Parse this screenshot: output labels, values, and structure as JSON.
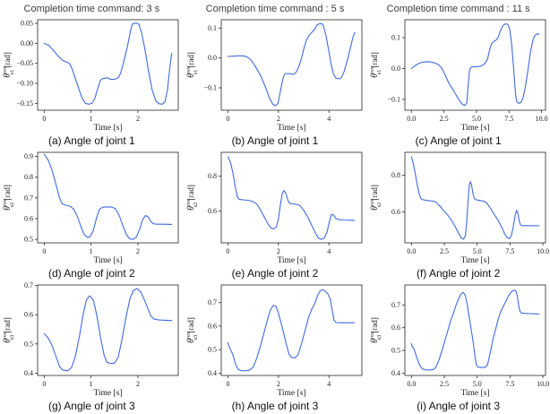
{
  "style": {
    "line_color": "#4169e1",
    "axis_color": "#262626",
    "title_color": "#3c3c3c",
    "caption_color": "#101010"
  },
  "chart_data": [
    {
      "id": "a",
      "type": "line",
      "title": "Completion time command: 3 s",
      "caption": "(a) Angle of joint 1",
      "xlabel": "Time [s]",
      "ylabel": {
        "sym": "θ",
        "sup": "res",
        "sub": "s1",
        "unit": "[rad]"
      },
      "xlim": [
        -0.14,
        2.86
      ],
      "ylim": [
        -0.167,
        0.059
      ],
      "xticks": [
        0,
        1,
        2
      ],
      "xtick_labels": [
        "0",
        "1",
        "2"
      ],
      "yticks": [
        0.05,
        0.0,
        -0.05,
        -0.1,
        -0.15
      ],
      "ytick_labels": [
        "0.05",
        "0.00",
        "−0.05",
        "−0.10",
        "−0.15"
      ],
      "t": [
        0,
        0.1,
        0.2,
        0.3,
        0.4,
        0.5,
        0.55,
        0.6,
        0.7,
        0.8,
        0.88,
        0.95,
        1.02,
        1.08,
        1.15,
        1.2,
        1.25,
        1.35,
        1.42,
        1.5,
        1.58,
        1.63,
        1.7,
        1.78,
        1.84,
        1.88,
        1.95,
        2.02,
        2.08,
        2.15,
        2.22,
        2.3,
        2.38,
        2.45,
        2.52,
        2.58,
        2.63,
        2.68,
        2.72
      ],
      "v": [
        0,
        -0.005,
        -0.018,
        -0.032,
        -0.043,
        -0.048,
        -0.052,
        -0.065,
        -0.1,
        -0.135,
        -0.15,
        -0.152,
        -0.15,
        -0.138,
        -0.11,
        -0.092,
        -0.088,
        -0.086,
        -0.09,
        -0.09,
        -0.086,
        -0.075,
        -0.045,
        -0.005,
        0.03,
        0.048,
        0.051,
        0.048,
        0.025,
        -0.015,
        -0.065,
        -0.115,
        -0.143,
        -0.151,
        -0.152,
        -0.145,
        -0.115,
        -0.06,
        -0.025
      ]
    },
    {
      "id": "b",
      "type": "line",
      "title": "Completion time command : 5 s",
      "caption": "(b) Angle of joint 1",
      "xlabel": "Time [s]",
      "ylabel": {
        "sym": "θ",
        "sup": "res",
        "sub": "s1",
        "unit": "[rad]"
      },
      "xlim": [
        -0.26,
        5.3
      ],
      "ylim": [
        -0.175,
        0.128
      ],
      "xticks": [
        0,
        2,
        4
      ],
      "xtick_labels": [
        "0",
        "2",
        "4"
      ],
      "yticks": [
        0.1,
        0.0,
        -0.1
      ],
      "ytick_labels": [
        "0.1",
        "0.0",
        "−0.1"
      ],
      "t": [
        0,
        0.2,
        0.4,
        0.6,
        0.75,
        0.9,
        1.1,
        1.3,
        1.5,
        1.65,
        1.78,
        1.88,
        1.98,
        2.05,
        2.15,
        2.22,
        2.3,
        2.45,
        2.6,
        2.7,
        2.8,
        2.9,
        3.0,
        3.1,
        3.2,
        3.35,
        3.45,
        3.52,
        3.6,
        3.7,
        3.78,
        3.88,
        3.98,
        4.08,
        4.18,
        4.28,
        4.4,
        4.5,
        4.6,
        4.72,
        4.85,
        4.95,
        5.02
      ],
      "v": [
        0.005,
        0.006,
        0.007,
        0.007,
        0.004,
        -0.005,
        -0.03,
        -0.06,
        -0.1,
        -0.135,
        -0.155,
        -0.16,
        -0.152,
        -0.125,
        -0.08,
        -0.058,
        -0.052,
        -0.053,
        -0.055,
        -0.048,
        -0.03,
        -0.005,
        0.03,
        0.058,
        0.075,
        0.088,
        0.098,
        0.11,
        0.114,
        0.115,
        0.108,
        0.075,
        0.03,
        -0.02,
        -0.055,
        -0.068,
        -0.07,
        -0.065,
        -0.045,
        -0.01,
        0.035,
        0.07,
        0.085
      ]
    },
    {
      "id": "c",
      "type": "line",
      "title": "Completion time command : 11 s",
      "caption": "(c) Angle of joint 1",
      "xlabel": "Time [s]",
      "ylabel": {
        "sym": "θ",
        "sup": "res",
        "sub": "s1",
        "unit": "[rad]"
      },
      "xlim": [
        -0.5,
        10.3
      ],
      "ylim": [
        -0.135,
        0.158
      ],
      "xticks": [
        0,
        2.5,
        5,
        7.5,
        10
      ],
      "xtick_labels": [
        "0.0",
        "2.5",
        "5.0",
        "7.5",
        "10.0"
      ],
      "yticks": [
        0.1,
        0.0,
        -0.1
      ],
      "ytick_labels": [
        "0.1",
        "0.0",
        "−0.1"
      ],
      "t": [
        0,
        0.3,
        0.6,
        0.9,
        1.2,
        1.5,
        1.8,
        2.1,
        2.35,
        2.6,
        2.85,
        3.1,
        3.35,
        3.6,
        3.8,
        3.95,
        4.1,
        4.25,
        4.35,
        4.45,
        4.55,
        4.7,
        5.0,
        5.3,
        5.55,
        5.7,
        5.85,
        6.0,
        6.15,
        6.3,
        6.5,
        6.65,
        6.8,
        6.95,
        7.1,
        7.25,
        7.4,
        7.55,
        7.7,
        7.85,
        8.0,
        8.1,
        8.25,
        8.4,
        8.55,
        8.75,
        8.95,
        9.15,
        9.35,
        9.5,
        9.65,
        9.8
      ],
      "v": [
        0,
        0.01,
        0.017,
        0.021,
        0.022,
        0.021,
        0.018,
        0.012,
        0,
        -0.022,
        -0.045,
        -0.062,
        -0.08,
        -0.098,
        -0.11,
        -0.117,
        -0.12,
        -0.112,
        -0.06,
        -0.01,
        0.003,
        0.006,
        0.006,
        0.007,
        0.012,
        0.02,
        0.03,
        0.06,
        0.08,
        0.087,
        0.092,
        0.1,
        0.118,
        0.133,
        0.142,
        0.145,
        0.143,
        0.128,
        0.08,
        0,
        -0.085,
        -0.108,
        -0.113,
        -0.11,
        -0.098,
        -0.06,
        -0.005,
        0.055,
        0.095,
        0.108,
        0.112,
        0.111
      ]
    },
    {
      "id": "d",
      "type": "line",
      "caption": "(d) Angle of joint 2",
      "xlabel": "Time [s]",
      "ylabel": {
        "sym": "θ",
        "sup": "res",
        "sub": "s2",
        "unit": "[rad]"
      },
      "xlim": [
        -0.14,
        2.86
      ],
      "ylim": [
        0.483,
        0.92
      ],
      "xticks": [
        0,
        1,
        2
      ],
      "xtick_labels": [
        "0",
        "1",
        "2"
      ],
      "yticks": [
        0.9,
        0.8,
        0.7,
        0.6,
        0.5
      ],
      "ytick_labels": [
        "0.9",
        "0.8",
        "0.7",
        "0.6",
        "0.5"
      ],
      "t": [
        0,
        0.08,
        0.16,
        0.24,
        0.32,
        0.38,
        0.45,
        0.55,
        0.62,
        0.7,
        0.78,
        0.85,
        0.92,
        0.98,
        1.05,
        1.12,
        1.18,
        1.25,
        1.35,
        1.45,
        1.52,
        1.6,
        1.68,
        1.76,
        1.83,
        1.9,
        1.97,
        2.04,
        2.1,
        2.16,
        2.22,
        2.28,
        2.33,
        2.4,
        2.55,
        2.72
      ],
      "v": [
        0.91,
        0.885,
        0.84,
        0.775,
        0.705,
        0.672,
        0.665,
        0.66,
        0.648,
        0.615,
        0.565,
        0.525,
        0.51,
        0.512,
        0.545,
        0.605,
        0.645,
        0.655,
        0.657,
        0.655,
        0.648,
        0.615,
        0.565,
        0.52,
        0.502,
        0.5,
        0.512,
        0.55,
        0.595,
        0.615,
        0.608,
        0.585,
        0.575,
        0.573,
        0.573,
        0.572
      ]
    },
    {
      "id": "e",
      "type": "line",
      "caption": "(e) Angle of joint 2",
      "xlabel": "Time [s]",
      "ylabel": {
        "sym": "θ",
        "sup": "res",
        "sub": "s2",
        "unit": "[rad]"
      },
      "xlim": [
        -0.26,
        5.3
      ],
      "ylim": [
        0.42,
        0.935
      ],
      "xticks": [
        0,
        2,
        4
      ],
      "xtick_labels": [
        "0",
        "2",
        "4"
      ],
      "yticks": [
        0.8,
        0.6
      ],
      "ytick_labels": [
        "0.8",
        "0.6"
      ],
      "t": [
        0,
        0.1,
        0.2,
        0.3,
        0.38,
        0.45,
        0.6,
        0.8,
        1.0,
        1.15,
        1.3,
        1.45,
        1.6,
        1.72,
        1.82,
        1.92,
        2.0,
        2.08,
        2.15,
        2.22,
        2.3,
        2.38,
        2.45,
        2.55,
        2.7,
        2.85,
        3.0,
        3.15,
        3.3,
        3.45,
        3.58,
        3.68,
        3.8,
        3.92,
        4.02,
        4.1,
        4.18,
        4.28,
        4.4,
        4.6,
        4.8,
        5.0
      ],
      "v": [
        0.91,
        0.88,
        0.82,
        0.735,
        0.68,
        0.668,
        0.665,
        0.662,
        0.655,
        0.64,
        0.605,
        0.565,
        0.525,
        0.503,
        0.5,
        0.51,
        0.555,
        0.64,
        0.7,
        0.718,
        0.7,
        0.66,
        0.645,
        0.642,
        0.64,
        0.632,
        0.605,
        0.57,
        0.525,
        0.478,
        0.448,
        0.44,
        0.445,
        0.48,
        0.545,
        0.582,
        0.578,
        0.558,
        0.552,
        0.55,
        0.549,
        0.548
      ]
    },
    {
      "id": "f",
      "type": "line",
      "caption": "(f) Angle of joint 2",
      "xlabel": "Time [s]",
      "ylabel": {
        "sym": "θ",
        "sup": "res",
        "sub": "s2",
        "unit": "[rad]"
      },
      "xlim": [
        -0.5,
        10.2
      ],
      "ylim": [
        0.43,
        0.925
      ],
      "xticks": [
        0,
        2.5,
        5,
        7.5,
        10
      ],
      "xtick_labels": [
        "0.0",
        "2.5",
        "5.0",
        "7.5",
        "10.0"
      ],
      "yticks": [
        0.8,
        0.6
      ],
      "ytick_labels": [
        "0.8",
        "0.6"
      ],
      "t": [
        0,
        0.15,
        0.3,
        0.45,
        0.6,
        0.72,
        0.85,
        1.1,
        1.4,
        1.7,
        1.9,
        2.2,
        2.5,
        2.8,
        3.0,
        3.3,
        3.6,
        3.8,
        3.95,
        4.1,
        4.2,
        4.3,
        4.4,
        4.48,
        4.58,
        4.68,
        4.78,
        4.9,
        5.2,
        5.5,
        5.7,
        6.0,
        6.3,
        6.6,
        6.9,
        7.1,
        7.3,
        7.45,
        7.6,
        7.75,
        7.9,
        8.0,
        8.1,
        8.2,
        8.3,
        8.45,
        8.8,
        9.2,
        9.7
      ],
      "v": [
        0.9,
        0.862,
        0.805,
        0.745,
        0.695,
        0.672,
        0.666,
        0.663,
        0.66,
        0.658,
        0.65,
        0.628,
        0.602,
        0.578,
        0.558,
        0.522,
        0.48,
        0.456,
        0.45,
        0.468,
        0.54,
        0.65,
        0.745,
        0.765,
        0.745,
        0.7,
        0.672,
        0.666,
        0.662,
        0.658,
        0.65,
        0.62,
        0.585,
        0.552,
        0.51,
        0.478,
        0.458,
        0.453,
        0.47,
        0.52,
        0.585,
        0.608,
        0.59,
        0.548,
        0.528,
        0.524,
        0.524,
        0.524,
        0.523
      ]
    },
    {
      "id": "g",
      "type": "line",
      "caption": "(g) Angle of joint 3",
      "xlabel": "Time [s]",
      "ylabel": {
        "sym": "θ",
        "sup": "res",
        "sub": "s3",
        "unit": "[rad]"
      },
      "xlim": [
        -0.14,
        2.86
      ],
      "ylim": [
        0.392,
        0.702
      ],
      "xticks": [
        0,
        1,
        2
      ],
      "xtick_labels": [
        "0",
        "1",
        "2"
      ],
      "yticks": [
        0.7,
        0.6,
        0.5,
        0.4
      ],
      "ytick_labels": [
        "0.7",
        "0.6",
        "0.5",
        "0.4"
      ],
      "t": [
        0,
        0.08,
        0.16,
        0.25,
        0.33,
        0.4,
        0.5,
        0.58,
        0.66,
        0.75,
        0.83,
        0.9,
        0.97,
        1.05,
        1.12,
        1.2,
        1.28,
        1.34,
        1.42,
        1.5,
        1.58,
        1.66,
        1.75,
        1.83,
        1.9,
        1.98,
        2.06,
        2.14,
        2.22,
        2.28,
        2.34,
        2.45,
        2.6,
        2.72
      ],
      "v": [
        0.535,
        0.522,
        0.498,
        0.458,
        0.422,
        0.41,
        0.408,
        0.418,
        0.455,
        0.525,
        0.6,
        0.65,
        0.665,
        0.65,
        0.6,
        0.525,
        0.46,
        0.437,
        0.433,
        0.434,
        0.455,
        0.515,
        0.595,
        0.655,
        0.682,
        0.69,
        0.678,
        0.65,
        0.618,
        0.595,
        0.585,
        0.582,
        0.581,
        0.58
      ]
    },
    {
      "id": "h",
      "type": "line",
      "caption": "(h) Angle of joint 3",
      "xlabel": "Time [s]",
      "ylabel": {
        "sym": "θ",
        "sup": "res",
        "sub": "s3",
        "unit": "[rad]"
      },
      "xlim": [
        -0.26,
        5.3
      ],
      "ylim": [
        0.39,
        0.775
      ],
      "xticks": [
        0,
        2,
        4
      ],
      "xtick_labels": [
        "0",
        "2",
        "4"
      ],
      "yticks": [
        0.7,
        0.6,
        0.5,
        0.4
      ],
      "ytick_labels": [
        "0.7",
        "0.6",
        "0.5",
        "0.4"
      ],
      "t": [
        0,
        0.06,
        0.12,
        0.2,
        0.3,
        0.4,
        0.5,
        0.65,
        0.85,
        1.0,
        1.15,
        1.3,
        1.45,
        1.6,
        1.7,
        1.8,
        1.9,
        2.0,
        2.15,
        2.3,
        2.42,
        2.52,
        2.65,
        2.78,
        2.9,
        3.05,
        3.2,
        3.32,
        3.45,
        3.55,
        3.65,
        3.75,
        3.85,
        3.95,
        4.05,
        4.12,
        4.2,
        4.28,
        4.45,
        4.7,
        5.0
      ],
      "v": [
        0.53,
        0.512,
        0.498,
        0.478,
        0.44,
        0.418,
        0.411,
        0.41,
        0.412,
        0.425,
        0.465,
        0.52,
        0.58,
        0.64,
        0.672,
        0.688,
        0.685,
        0.655,
        0.595,
        0.528,
        0.48,
        0.467,
        0.465,
        0.478,
        0.52,
        0.58,
        0.64,
        0.672,
        0.7,
        0.73,
        0.75,
        0.755,
        0.748,
        0.738,
        0.715,
        0.67,
        0.625,
        0.615,
        0.614,
        0.614,
        0.614
      ]
    },
    {
      "id": "i",
      "type": "line",
      "caption": "(i) Angle of joint 3",
      "xlabel": "Time [s]",
      "ylabel": {
        "sym": "θ",
        "sup": "res",
        "sub": "s3",
        "unit": "[rad]"
      },
      "xlim": [
        -0.5,
        10.2
      ],
      "ylim": [
        0.39,
        0.788
      ],
      "xticks": [
        0,
        2.5,
        5,
        7.5,
        10
      ],
      "xtick_labels": [
        "0.0",
        "2.5",
        "5.0",
        "7.5",
        "10.0"
      ],
      "yticks": [
        0.7,
        0.6,
        0.5,
        0.4
      ],
      "ytick_labels": [
        "0.7",
        "0.6",
        "0.5",
        "0.4"
      ],
      "t": [
        0,
        0.07,
        0.14,
        0.2,
        0.3,
        0.45,
        0.6,
        0.75,
        0.9,
        1.1,
        1.4,
        1.65,
        1.85,
        2.1,
        2.4,
        2.7,
        3.0,
        3.2,
        3.4,
        3.6,
        3.8,
        3.95,
        4.1,
        4.25,
        4.4,
        4.55,
        4.7,
        4.85,
        4.95,
        5.05,
        5.3,
        5.6,
        5.8,
        6.0,
        6.2,
        6.4,
        6.6,
        6.8,
        7.0,
        7.2,
        7.4,
        7.6,
        7.8,
        7.95,
        8.05,
        8.15,
        8.25,
        8.35,
        8.6,
        9.0,
        9.4,
        9.7
      ],
      "v": [
        0.53,
        0.515,
        0.512,
        0.505,
        0.488,
        0.462,
        0.44,
        0.424,
        0.417,
        0.415,
        0.414,
        0.416,
        0.425,
        0.458,
        0.515,
        0.575,
        0.635,
        0.665,
        0.7,
        0.73,
        0.75,
        0.755,
        0.742,
        0.7,
        0.645,
        0.59,
        0.535,
        0.468,
        0.435,
        0.427,
        0.425,
        0.425,
        0.438,
        0.492,
        0.548,
        0.592,
        0.638,
        0.672,
        0.695,
        0.718,
        0.742,
        0.758,
        0.765,
        0.762,
        0.74,
        0.7,
        0.672,
        0.665,
        0.663,
        0.662,
        0.661,
        0.66
      ]
    }
  ]
}
